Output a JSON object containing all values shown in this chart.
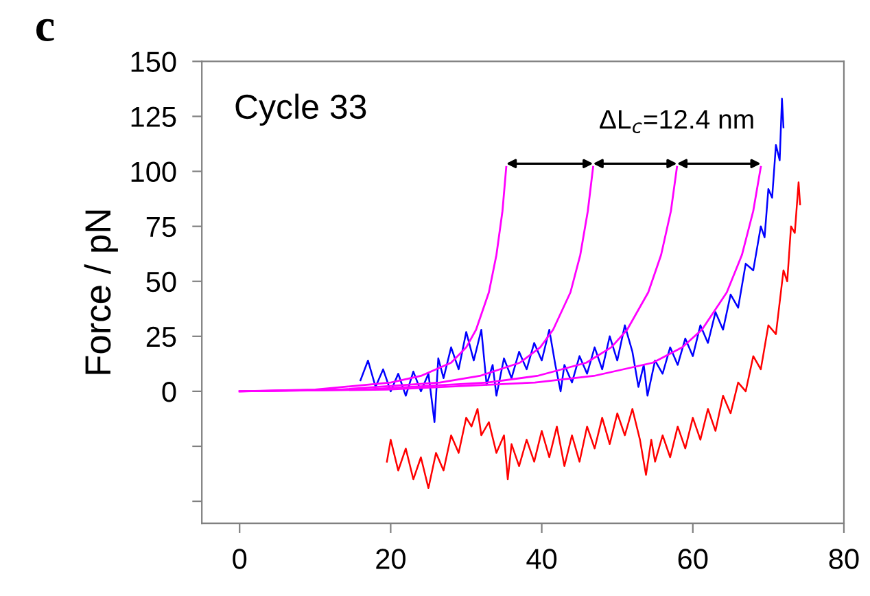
{
  "chart_data": {
    "type": "line",
    "ylabel": "Force / pN",
    "xlim": [
      -5,
      80
    ],
    "xticks": [
      0,
      20,
      40,
      60,
      80
    ],
    "ylim": [
      -60,
      150
    ],
    "yticks": [
      {
        "value": -50,
        "label": null
      },
      {
        "value": -25,
        "label": null
      },
      0,
      25,
      50,
      75,
      100,
      125,
      150
    ],
    "grid": false,
    "marker": "none",
    "line_style": "solid",
    "annotations": [
      "c",
      "Cycle 33",
      "ΔL$_{c}$=12.4 nm"
    ],
    "series": [
      {
        "color": "#0000ff",
        "x": [
          16,
          17,
          18,
          19,
          20,
          21,
          22,
          23,
          24,
          25,
          25.8,
          26.3,
          27,
          28,
          29,
          30,
          31,
          32,
          32.7,
          33.5,
          34,
          35,
          36,
          37,
          38,
          39,
          40,
          41,
          41.8,
          42.5,
          43,
          44,
          45,
          46,
          47,
          48,
          49,
          50,
          51,
          52,
          52.8,
          53.5,
          54,
          55,
          56,
          57,
          58,
          59,
          60,
          61,
          62,
          63,
          64,
          65,
          66,
          67,
          68,
          69,
          69.5,
          70,
          70.5,
          71,
          71.5,
          71.8,
          72
        ],
        "values": [
          5,
          14,
          2,
          10,
          0,
          8,
          -2,
          9,
          0,
          8,
          -14,
          15,
          6,
          20,
          10,
          27,
          14,
          28,
          3,
          12,
          -2,
          15,
          6,
          18,
          10,
          22,
          14,
          28,
          12,
          0,
          12,
          4,
          16,
          8,
          20,
          10,
          25,
          14,
          30,
          18,
          2,
          12,
          -2,
          14,
          8,
          20,
          12,
          24,
          16,
          30,
          22,
          36,
          28,
          44,
          38,
          58,
          55,
          75,
          70,
          92,
          88,
          112,
          105,
          133,
          120
        ]
      },
      {
        "color": "#ff0000",
        "x": [
          19.5,
          20,
          21,
          22,
          23,
          24,
          25,
          26,
          27,
          28,
          29,
          30,
          30.7,
          31.5,
          32,
          33,
          34,
          35,
          35.5,
          36,
          37,
          38,
          39,
          40,
          41,
          42,
          43,
          44,
          45,
          46,
          47,
          48,
          49,
          50,
          51,
          52,
          53,
          53.8,
          54.5,
          55,
          56,
          57,
          58,
          59,
          60,
          61,
          62,
          63,
          64,
          65,
          66,
          67,
          68,
          69,
          70,
          71,
          72,
          72.5,
          73,
          73.5,
          74,
          74.2
        ],
        "values": [
          -32,
          -22,
          -36,
          -26,
          -40,
          -30,
          -44,
          -28,
          -36,
          -20,
          -28,
          -12,
          -16,
          -8,
          -20,
          -14,
          -28,
          -20,
          -40,
          -24,
          -34,
          -22,
          -32,
          -18,
          -30,
          -16,
          -34,
          -20,
          -32,
          -16,
          -26,
          -12,
          -24,
          -10,
          -20,
          -8,
          -22,
          -38,
          -22,
          -32,
          -20,
          -30,
          -16,
          -26,
          -12,
          -22,
          -8,
          -18,
          -2,
          -10,
          4,
          0,
          16,
          10,
          30,
          26,
          55,
          50,
          75,
          72,
          95,
          85
        ]
      },
      {
        "color": "#ff00ff",
        "x": [
          0,
          10,
          20,
          24,
          28,
          30,
          31.3,
          33,
          34,
          34.8,
          35.3
        ],
        "values": [
          0,
          0.8,
          4,
          7,
          13,
          20,
          28,
          45,
          62,
          82,
          102
        ]
      },
      {
        "color": "#ff00ff",
        "x": [
          0,
          13.3,
          26.5,
          31.8,
          37.1,
          39.8,
          41.5,
          43.8,
          45.1,
          46.1,
          46.8
        ],
        "values": [
          0,
          0.8,
          4,
          7,
          13,
          20,
          28,
          45,
          62,
          82,
          102
        ]
      },
      {
        "color": "#ff00ff",
        "x": [
          0,
          16.4,
          32.8,
          39.4,
          45.9,
          49.2,
          51.3,
          54.1,
          55.8,
          57.1,
          57.9
        ],
        "values": [
          0,
          0.8,
          4,
          7,
          13,
          20,
          28,
          45,
          62,
          82,
          102
        ]
      },
      {
        "color": "#ff00ff",
        "x": [
          0,
          19.5,
          39.1,
          46.9,
          54.7,
          58.6,
          61.2,
          64.5,
          66.5,
          68.0,
          69.0
        ],
        "values": [
          0,
          0.8,
          4,
          7,
          13,
          20,
          28,
          45,
          62,
          82,
          102
        ]
      }
    ]
  }
}
